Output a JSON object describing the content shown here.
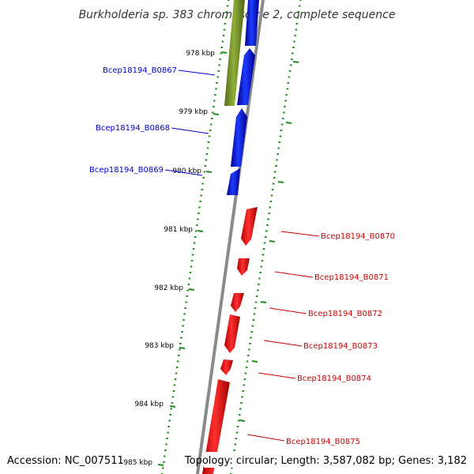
{
  "title": "Burkholderia sp. 383 chromosome 2, complete sequence",
  "colors": {
    "forward": "#0000ff",
    "reverse": "#ff0000",
    "olive": "#6b8e23",
    "backbone": "#8a8a8a",
    "tick": "#228b22"
  },
  "scale": {
    "unit": "kbp",
    "ticks": [
      "978 kbp",
      "979 kbp",
      "980 kbp",
      "981 kbp",
      "982 kbp",
      "983 kbp",
      "984 kbp",
      "985 kbp"
    ]
  },
  "genes": {
    "forward": [
      "Bcep18194_B0867",
      "Bcep18194_B0868",
      "Bcep18194_B0869"
    ],
    "reverse": [
      "Bcep18194_B0870",
      "Bcep18194_B0871",
      "Bcep18194_B0872",
      "Bcep18194_B0873",
      "Bcep18194_B0874",
      "Bcep18194_B0875"
    ]
  },
  "footer": {
    "accession": "Accession: NC_007511",
    "summary": "Topology: circular; Length: 3,587,082 bp; Genes: 3,182"
  }
}
